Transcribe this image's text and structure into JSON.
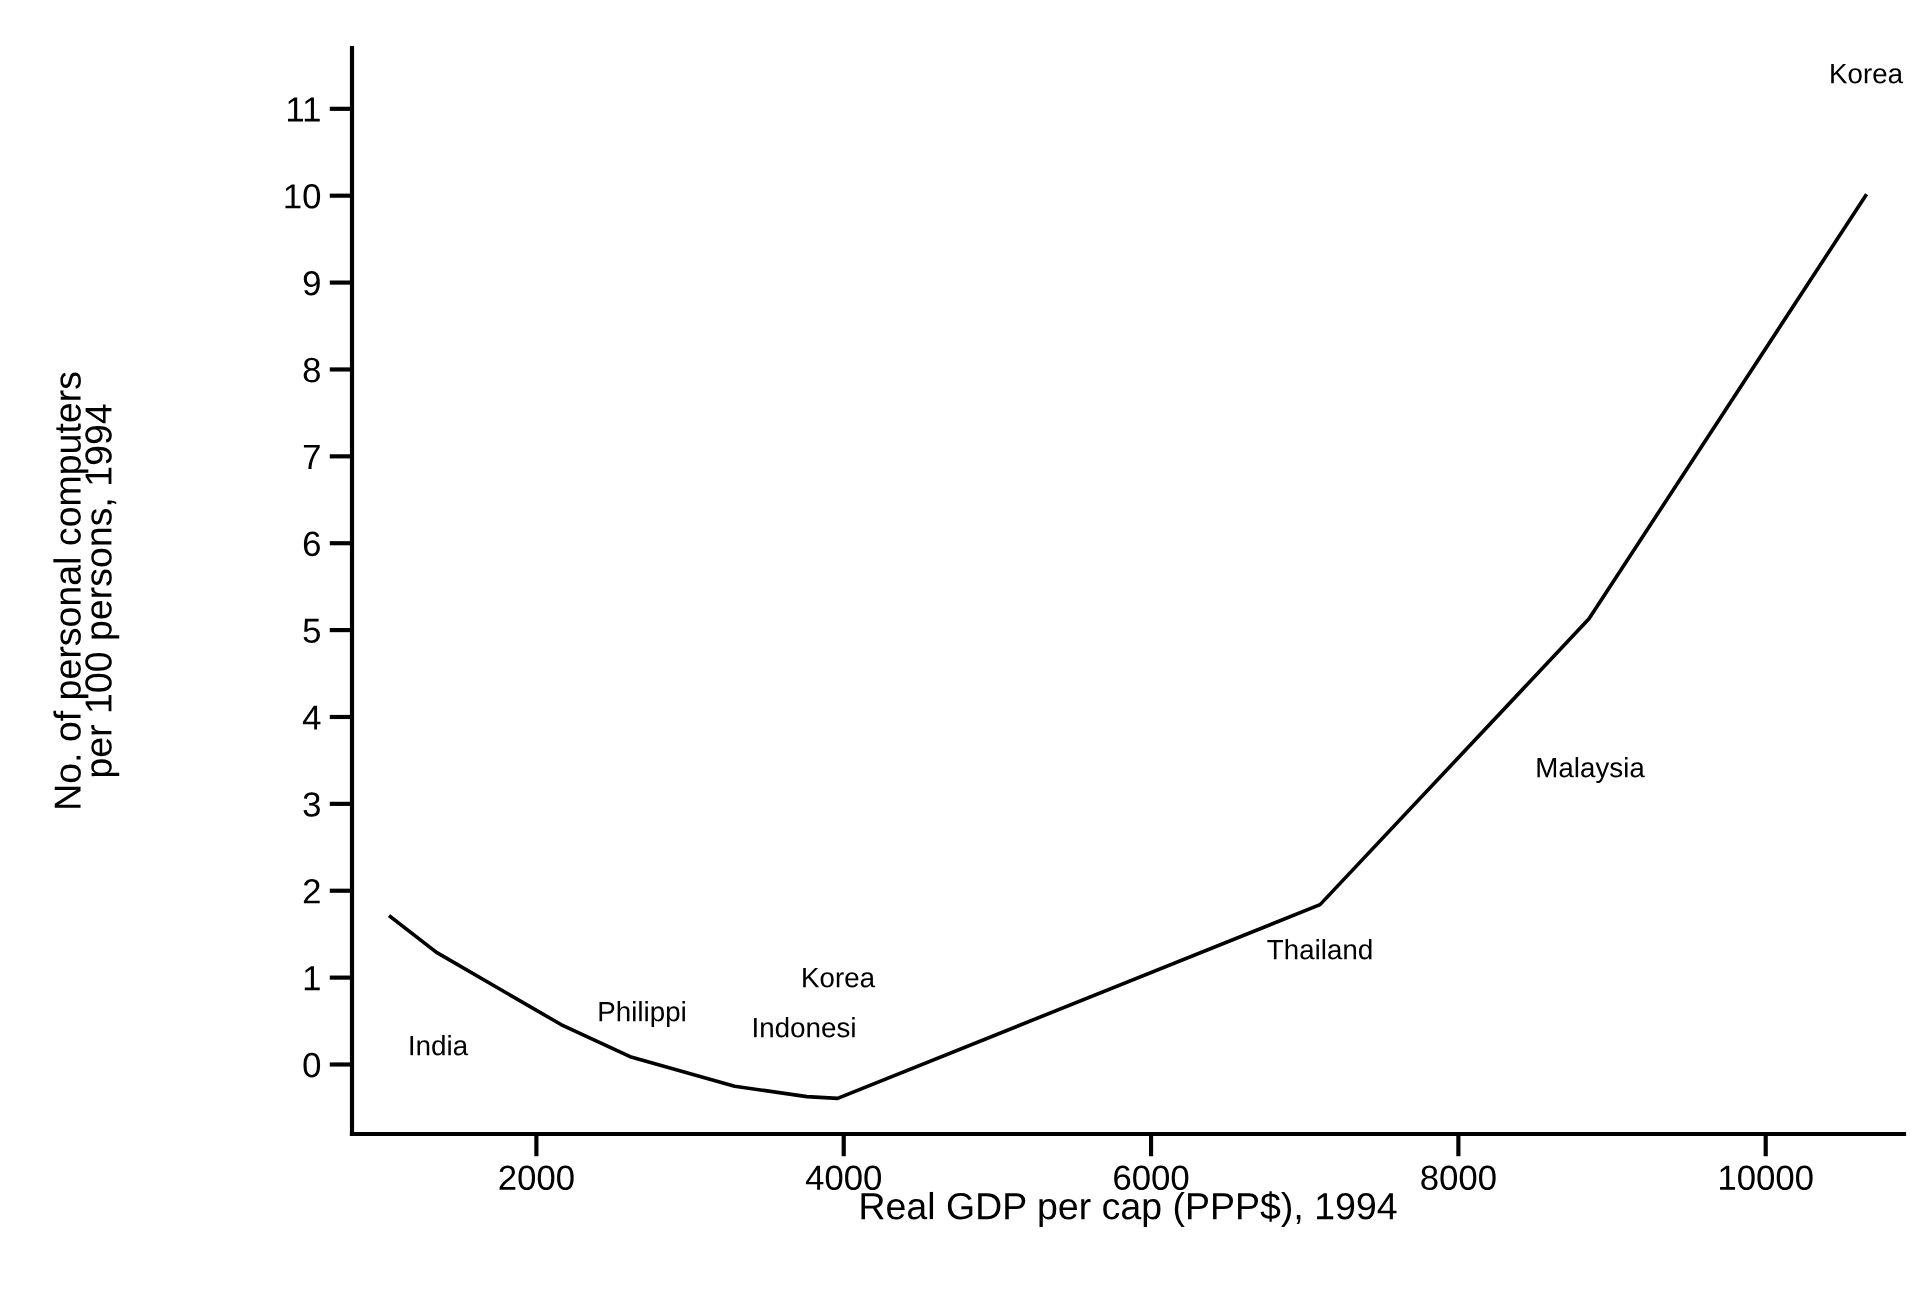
{
  "chart_data": {
    "type": "line",
    "xlabel": "Real GDP per cap (PPP$), 1994",
    "ylabel": "No. of personal computers\nper 100 persons, 1994",
    "x": [
      1050,
      1350,
      2160,
      2610,
      3290,
      3760,
      3960,
      7100,
      8850,
      10650
    ],
    "series": [
      {
        "color": "#000000",
        "values": [
          1.7,
          1.29,
          0.46,
          0.09,
          -0.25,
          -0.37,
          -0.39,
          1.84,
          5.13,
          10.0
        ]
      }
    ],
    "xlim": [
      800,
      10900
    ],
    "ylim": [
      -0.8,
      11.7
    ],
    "xticks": [
      2000,
      4000,
      6000,
      8000,
      10000
    ],
    "yticks": [
      0,
      1,
      2,
      3,
      4,
      5,
      6,
      7,
      8,
      9,
      10,
      11
    ],
    "grid": false,
    "marker": "none",
    "line_style": "solid",
    "annotations": [
      "India",
      "Philippi",
      "Indonesi",
      "Korea",
      "Thailand",
      "Malaysia",
      "Korea"
    ]
  }
}
